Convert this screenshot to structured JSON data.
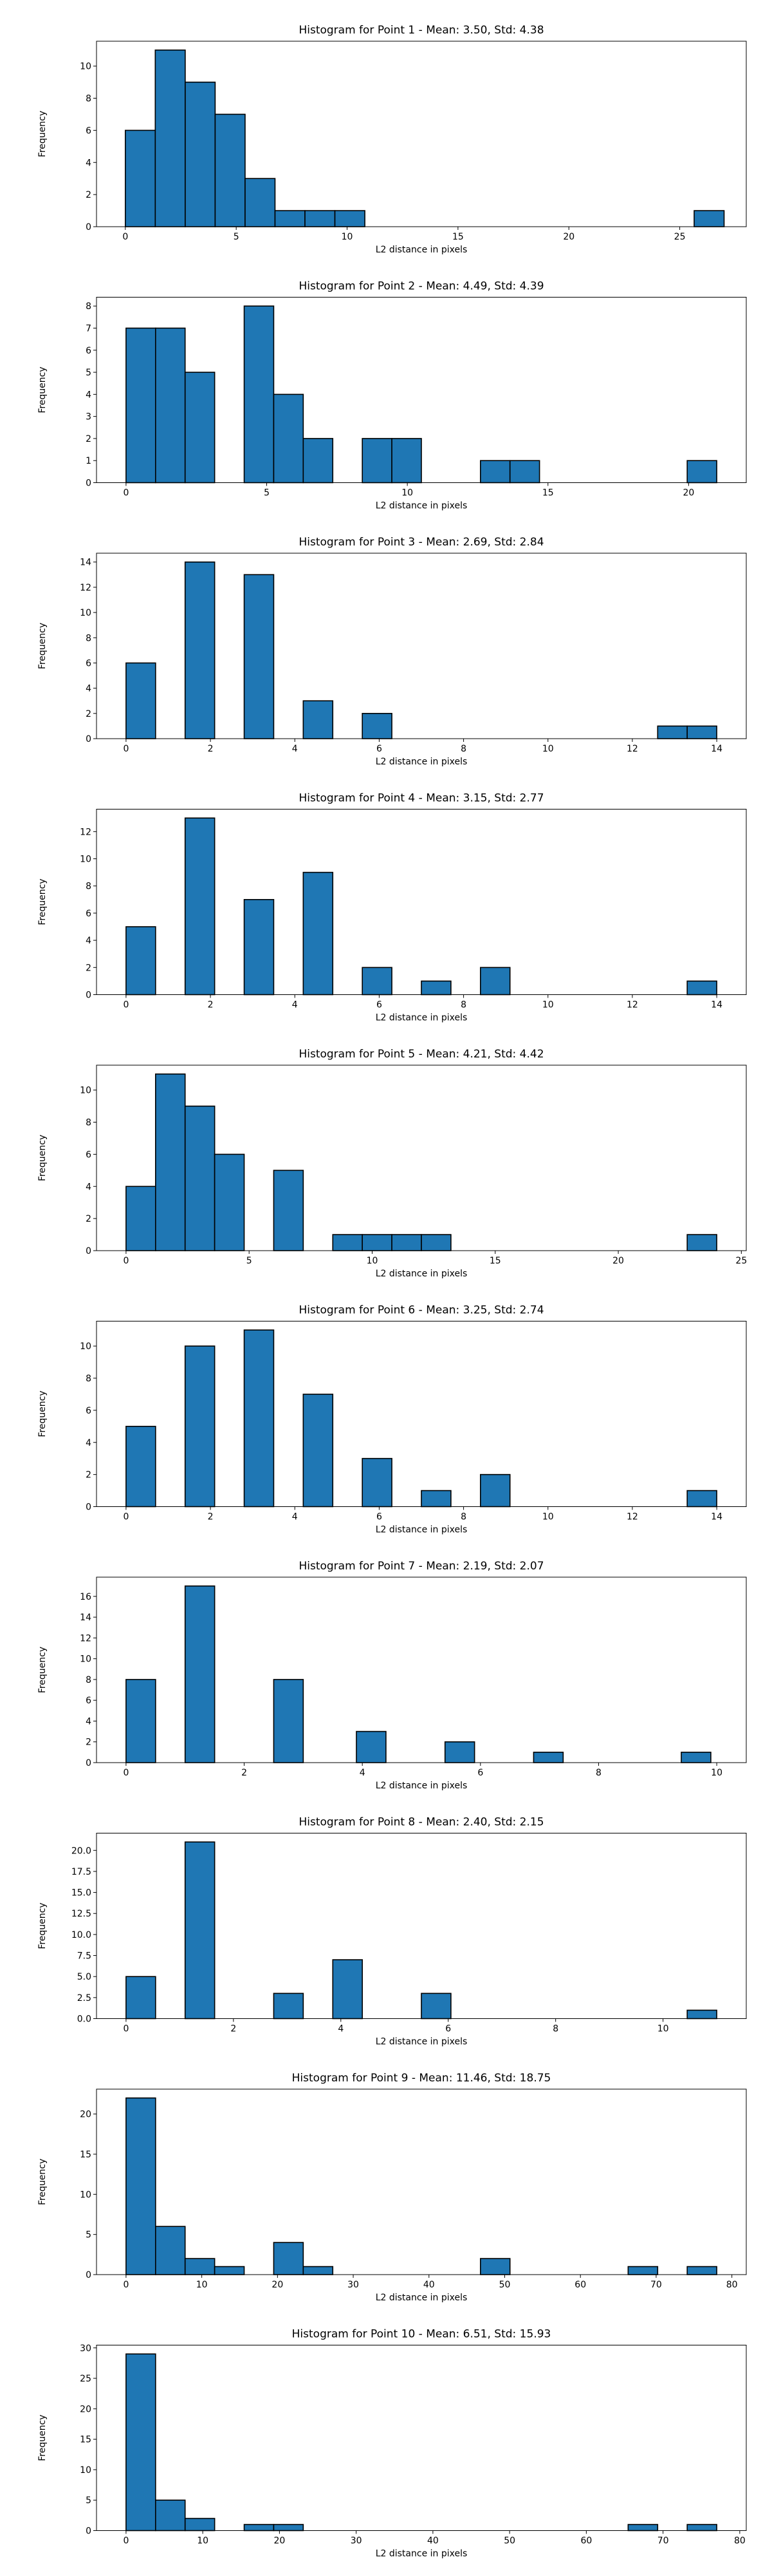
{
  "chart_data": [
    {
      "type": "bar",
      "title": "Histogram for Point 1 - Mean: 3.50, Std: 4.38",
      "xlabel": "L2 distance in pixels",
      "ylabel": "Frequency",
      "xlim": [
        -1.3,
        28.0
      ],
      "ylim": [
        0,
        11.55
      ],
      "xticks": [
        0,
        5,
        10,
        15,
        20,
        25
      ],
      "yticks": [
        0,
        2,
        4,
        6,
        8,
        10
      ],
      "bins": [
        {
          "x0": 0.0,
          "x1": 1.35,
          "count": 6
        },
        {
          "x0": 1.35,
          "x1": 2.7,
          "count": 11
        },
        {
          "x0": 2.7,
          "x1": 4.05,
          "count": 9
        },
        {
          "x0": 4.05,
          "x1": 5.4,
          "count": 7
        },
        {
          "x0": 5.4,
          "x1": 6.75,
          "count": 3
        },
        {
          "x0": 6.75,
          "x1": 8.1,
          "count": 1
        },
        {
          "x0": 8.1,
          "x1": 9.45,
          "count": 1
        },
        {
          "x0": 9.45,
          "x1": 10.8,
          "count": 1
        },
        {
          "x0": 25.65,
          "x1": 27.0,
          "count": 1
        }
      ]
    },
    {
      "type": "bar",
      "title": "Histogram for Point 2 - Mean: 4.49, Std: 4.39",
      "xlabel": "L2 distance in pixels",
      "ylabel": "Frequency",
      "xlim": [
        -1.05,
        22.05
      ],
      "ylim": [
        0,
        8.4
      ],
      "xticks": [
        0,
        5,
        10,
        15,
        20
      ],
      "yticks": [
        0,
        1,
        2,
        3,
        4,
        5,
        6,
        7,
        8
      ],
      "bins": [
        {
          "x0": 0.0,
          "x1": 1.05,
          "count": 7
        },
        {
          "x0": 1.05,
          "x1": 2.1,
          "count": 7
        },
        {
          "x0": 2.1,
          "x1": 3.15,
          "count": 5
        },
        {
          "x0": 4.2,
          "x1": 5.25,
          "count": 8
        },
        {
          "x0": 5.25,
          "x1": 6.3,
          "count": 4
        },
        {
          "x0": 6.3,
          "x1": 7.35,
          "count": 2
        },
        {
          "x0": 8.4,
          "x1": 9.45,
          "count": 2
        },
        {
          "x0": 9.45,
          "x1": 10.5,
          "count": 2
        },
        {
          "x0": 12.6,
          "x1": 13.65,
          "count": 1
        },
        {
          "x0": 13.65,
          "x1": 14.7,
          "count": 1
        },
        {
          "x0": 19.95,
          "x1": 21.0,
          "count": 1
        }
      ]
    },
    {
      "type": "bar",
      "title": "Histogram for Point 3 - Mean: 2.69, Std: 2.84",
      "xlabel": "L2 distance in pixels",
      "ylabel": "Frequency",
      "xlim": [
        -0.7,
        14.7
      ],
      "ylim": [
        0,
        14.7
      ],
      "xticks": [
        0,
        2,
        4,
        6,
        8,
        10,
        12,
        14
      ],
      "yticks": [
        0,
        2,
        4,
        6,
        8,
        10,
        12,
        14
      ],
      "bins": [
        {
          "x0": 0.0,
          "x1": 0.7,
          "count": 6
        },
        {
          "x0": 1.4,
          "x1": 2.1,
          "count": 14
        },
        {
          "x0": 2.8,
          "x1": 3.5,
          "count": 13
        },
        {
          "x0": 4.2,
          "x1": 4.9,
          "count": 3
        },
        {
          "x0": 5.6,
          "x1": 6.3,
          "count": 2
        },
        {
          "x0": 12.6,
          "x1": 13.3,
          "count": 1
        },
        {
          "x0": 13.3,
          "x1": 14.0,
          "count": 1
        }
      ]
    },
    {
      "type": "bar",
      "title": "Histogram for Point 4 - Mean: 3.15, Std: 2.77",
      "xlabel": "L2 distance in pixels",
      "ylabel": "Frequency",
      "xlim": [
        -0.7,
        14.7
      ],
      "ylim": [
        0,
        13.65
      ],
      "xticks": [
        0,
        2,
        4,
        6,
        8,
        10,
        12,
        14
      ],
      "yticks": [
        0,
        2,
        4,
        6,
        8,
        10,
        12
      ],
      "bins": [
        {
          "x0": 0.0,
          "x1": 0.7,
          "count": 5
        },
        {
          "x0": 1.4,
          "x1": 2.1,
          "count": 13
        },
        {
          "x0": 2.8,
          "x1": 3.5,
          "count": 7
        },
        {
          "x0": 4.2,
          "x1": 4.9,
          "count": 9
        },
        {
          "x0": 5.6,
          "x1": 6.3,
          "count": 2
        },
        {
          "x0": 7.0,
          "x1": 7.7,
          "count": 1
        },
        {
          "x0": 8.4,
          "x1": 9.1,
          "count": 2
        },
        {
          "x0": 13.3,
          "x1": 14.0,
          "count": 1
        }
      ]
    },
    {
      "type": "bar",
      "title": "Histogram for Point 5 - Mean: 4.21, Std: 4.42",
      "xlabel": "L2 distance in pixels",
      "ylabel": "Frequency",
      "xlim": [
        -1.2,
        25.2
      ],
      "ylim": [
        0,
        11.55
      ],
      "xticks": [
        0,
        5,
        10,
        15,
        20,
        25
      ],
      "yticks": [
        0,
        2,
        4,
        6,
        8,
        10
      ],
      "bins": [
        {
          "x0": 0.0,
          "x1": 1.2,
          "count": 4
        },
        {
          "x0": 1.2,
          "x1": 2.4,
          "count": 11
        },
        {
          "x0": 2.4,
          "x1": 3.6,
          "count": 9
        },
        {
          "x0": 3.6,
          "x1": 4.8,
          "count": 6
        },
        {
          "x0": 6.0,
          "x1": 7.2,
          "count": 5
        },
        {
          "x0": 8.4,
          "x1": 9.6,
          "count": 1
        },
        {
          "x0": 9.6,
          "x1": 10.8,
          "count": 1
        },
        {
          "x0": 10.8,
          "x1": 12.0,
          "count": 1
        },
        {
          "x0": 12.0,
          "x1": 13.2,
          "count": 1
        },
        {
          "x0": 22.8,
          "x1": 24.0,
          "count": 1
        }
      ]
    },
    {
      "type": "bar",
      "title": "Histogram for Point 6 - Mean: 3.25, Std: 2.74",
      "xlabel": "L2 distance in pixels",
      "ylabel": "Frequency",
      "xlim": [
        -0.7,
        14.7
      ],
      "ylim": [
        0,
        11.55
      ],
      "xticks": [
        0,
        2,
        4,
        6,
        8,
        10,
        12,
        14
      ],
      "yticks": [
        0,
        2,
        4,
        6,
        8,
        10
      ],
      "bins": [
        {
          "x0": 0.0,
          "x1": 0.7,
          "count": 5
        },
        {
          "x0": 1.4,
          "x1": 2.1,
          "count": 10
        },
        {
          "x0": 2.8,
          "x1": 3.5,
          "count": 11
        },
        {
          "x0": 4.2,
          "x1": 4.9,
          "count": 7
        },
        {
          "x0": 5.6,
          "x1": 6.3,
          "count": 3
        },
        {
          "x0": 7.0,
          "x1": 7.7,
          "count": 1
        },
        {
          "x0": 8.4,
          "x1": 9.1,
          "count": 2
        },
        {
          "x0": 13.3,
          "x1": 14.0,
          "count": 1
        }
      ]
    },
    {
      "type": "bar",
      "title": "Histogram for Point 7 - Mean: 2.19, Std: 2.07",
      "xlabel": "L2 distance in pixels",
      "ylabel": "Frequency",
      "xlim": [
        -0.5,
        10.5
      ],
      "ylim": [
        0,
        17.85
      ],
      "xticks": [
        0,
        2,
        4,
        6,
        8,
        10
      ],
      "yticks": [
        0,
        2,
        4,
        6,
        8,
        10,
        12,
        14,
        16
      ],
      "bins": [
        {
          "x0": 0.0,
          "x1": 0.5,
          "count": 8
        },
        {
          "x0": 1.0,
          "x1": 1.5,
          "count": 17
        },
        {
          "x0": 2.5,
          "x1": 3.0,
          "count": 8
        },
        {
          "x0": 3.9,
          "x1": 4.4,
          "count": 3
        },
        {
          "x0": 5.4,
          "x1": 5.9,
          "count": 2
        },
        {
          "x0": 6.9,
          "x1": 7.4,
          "count": 1
        },
        {
          "x0": 9.4,
          "x1": 9.9,
          "count": 1
        }
      ]
    },
    {
      "type": "bar",
      "title": "Histogram for Point 8 - Mean: 2.40, Std: 2.15",
      "xlabel": "L2 distance in pixels",
      "ylabel": "Frequency",
      "xlim": [
        -0.55,
        11.55
      ],
      "ylim": [
        0,
        22.05
      ],
      "xticks": [
        0,
        2,
        4,
        6,
        8,
        10
      ],
      "yticks": [
        0.0,
        2.5,
        5.0,
        7.5,
        10.0,
        12.5,
        15.0,
        17.5,
        20.0
      ],
      "ytick_labels": [
        "0.0",
        "2.5",
        "5.0",
        "7.5",
        "10.0",
        "12.5",
        "15.0",
        "17.5",
        "20.0"
      ],
      "bins": [
        {
          "x0": 0.0,
          "x1": 0.55,
          "count": 5
        },
        {
          "x0": 1.1,
          "x1": 1.65,
          "count": 21
        },
        {
          "x0": 2.75,
          "x1": 3.3,
          "count": 3
        },
        {
          "x0": 3.85,
          "x1": 4.4,
          "count": 7
        },
        {
          "x0": 5.5,
          "x1": 6.05,
          "count": 3
        },
        {
          "x0": 10.45,
          "x1": 11.0,
          "count": 1
        }
      ]
    },
    {
      "type": "bar",
      "title": "Histogram for Point 9 - Mean: 11.46, Std: 18.75",
      "xlabel": "L2 distance in pixels",
      "ylabel": "Frequency",
      "xlim": [
        -3.9,
        81.9
      ],
      "ylim": [
        0,
        23.1
      ],
      "xticks": [
        0,
        10,
        20,
        30,
        40,
        50,
        60,
        70,
        80
      ],
      "yticks": [
        0,
        5,
        10,
        15,
        20
      ],
      "bins": [
        {
          "x0": 0.0,
          "x1": 3.9,
          "count": 22
        },
        {
          "x0": 3.9,
          "x1": 7.8,
          "count": 6
        },
        {
          "x0": 7.8,
          "x1": 11.7,
          "count": 2
        },
        {
          "x0": 11.7,
          "x1": 15.6,
          "count": 1
        },
        {
          "x0": 19.5,
          "x1": 23.4,
          "count": 4
        },
        {
          "x0": 23.4,
          "x1": 27.3,
          "count": 1
        },
        {
          "x0": 46.8,
          "x1": 50.7,
          "count": 2
        },
        {
          "x0": 66.3,
          "x1": 70.2,
          "count": 1
        },
        {
          "x0": 74.1,
          "x1": 78.0,
          "count": 1
        }
      ]
    },
    {
      "type": "bar",
      "title": "Histogram for Point 10 - Mean: 6.51, Std: 15.93",
      "xlabel": "L2 distance in pixels",
      "ylabel": "Frequency",
      "xlim": [
        -3.85,
        80.85
      ],
      "ylim": [
        0,
        30.45
      ],
      "xticks": [
        0,
        10,
        20,
        30,
        40,
        50,
        60,
        70,
        80
      ],
      "yticks": [
        0,
        5,
        10,
        15,
        20,
        25,
        30
      ],
      "bins": [
        {
          "x0": 0.0,
          "x1": 3.85,
          "count": 29
        },
        {
          "x0": 3.85,
          "x1": 7.7,
          "count": 5
        },
        {
          "x0": 7.7,
          "x1": 11.55,
          "count": 2
        },
        {
          "x0": 15.4,
          "x1": 19.25,
          "count": 1
        },
        {
          "x0": 19.25,
          "x1": 23.1,
          "count": 1
        },
        {
          "x0": 65.45,
          "x1": 69.3,
          "count": 1
        },
        {
          "x0": 73.15,
          "x1": 77.0,
          "count": 1
        }
      ]
    }
  ]
}
